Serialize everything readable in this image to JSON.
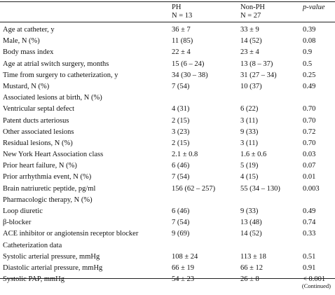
{
  "header": {
    "ph_label": "PH",
    "ph_n": "N = 13",
    "nonph_label": "Non-PH",
    "nonph_n": "N = 27",
    "p_label": "p-value"
  },
  "rows": [
    {
      "label": "Age at catheter, y",
      "ph": "36 ± 7",
      "nonph": "33 ± 9",
      "p": "0.39"
    },
    {
      "label": "Male, N (%)",
      "ph": "11 (85)",
      "nonph": "14 (52)",
      "p": "0.08"
    },
    {
      "label": "Body mass index",
      "ph": "22 ± 4",
      "nonph": "23 ± 4",
      "p": "0.9"
    },
    {
      "label": "Age at atrial switch surgery, months",
      "ph": "15 (6 – 24)",
      "nonph": "13 (8 – 37)",
      "p": "0.5"
    },
    {
      "label": "Time from surgery to catheterization, y",
      "ph": "34 (30 – 38)",
      "nonph": "31 (27 – 34)",
      "p": "0.25"
    },
    {
      "label": "Mustard, N (%)",
      "ph": "7 (54)",
      "nonph": "10 (37)",
      "p": "0.49"
    },
    {
      "label": "Associated lesions at birth, N (%)",
      "ph": "",
      "nonph": "",
      "p": ""
    },
    {
      "label": "Ventricular septal defect",
      "ph": "4 (31)",
      "nonph": "6 (22)",
      "p": "0.70"
    },
    {
      "label": "Patent ducts arteriosus",
      "ph": "2 (15)",
      "nonph": "3 (11)",
      "p": "0.70"
    },
    {
      "label": "Other associated lesions",
      "ph": "3 (23)",
      "nonph": "9 (33)",
      "p": "0.72"
    },
    {
      "label": "Residual lesions, N (%)",
      "ph": "2 (15)",
      "nonph": "3 (11)",
      "p": "0.70"
    },
    {
      "label": "New York Heart Association class",
      "ph": "2.1 ± 0.8",
      "nonph": "1.6 ± 0.6",
      "p": "0.03"
    },
    {
      "label": "Prior heart failure, N (%)",
      "ph": "6 (46)",
      "nonph": "5 (19)",
      "p": "0.07"
    },
    {
      "label": "Prior arrhythmia event, N (%)",
      "ph": "7 (54)",
      "nonph": "4 (15)",
      "p": "0.01"
    },
    {
      "label": "Brain natriuretic peptide, pg/ml",
      "ph": "156 (62 – 257)",
      "nonph": "55 (34 – 130)",
      "p": "0.003"
    },
    {
      "label": "Pharmacologic therapy, N (%)",
      "ph": "",
      "nonph": "",
      "p": ""
    },
    {
      "label": "Loop diuretic",
      "ph": "6 (46)",
      "nonph": "9 (33)",
      "p": "0.49"
    },
    {
      "label": "β-blocker",
      "ph": "7 (54)",
      "nonph": "13 (48)",
      "p": "0.74"
    },
    {
      "label": "ACE inhibitor or angiotensin receptor blocker",
      "ph": "9 (69)",
      "nonph": "14 (52)",
      "p": "0.33"
    },
    {
      "label": "Catheterization data",
      "ph": "",
      "nonph": "",
      "p": ""
    },
    {
      "label": "Systolic arterial pressure, mmHg",
      "ph": "108 ± 24",
      "nonph": "113 ± 18",
      "p": "0.51"
    },
    {
      "label": "Diastolic arterial pressure, mmHg",
      "ph": "66 ± 19",
      "nonph": "66 ± 12",
      "p": "0.91"
    },
    {
      "label": "Systolic PAP, mmHg",
      "ph": "54 ± 23",
      "nonph": "26 ± 8",
      "p": "< 0.001"
    }
  ],
  "footer": {
    "continued": "(Continued)"
  }
}
